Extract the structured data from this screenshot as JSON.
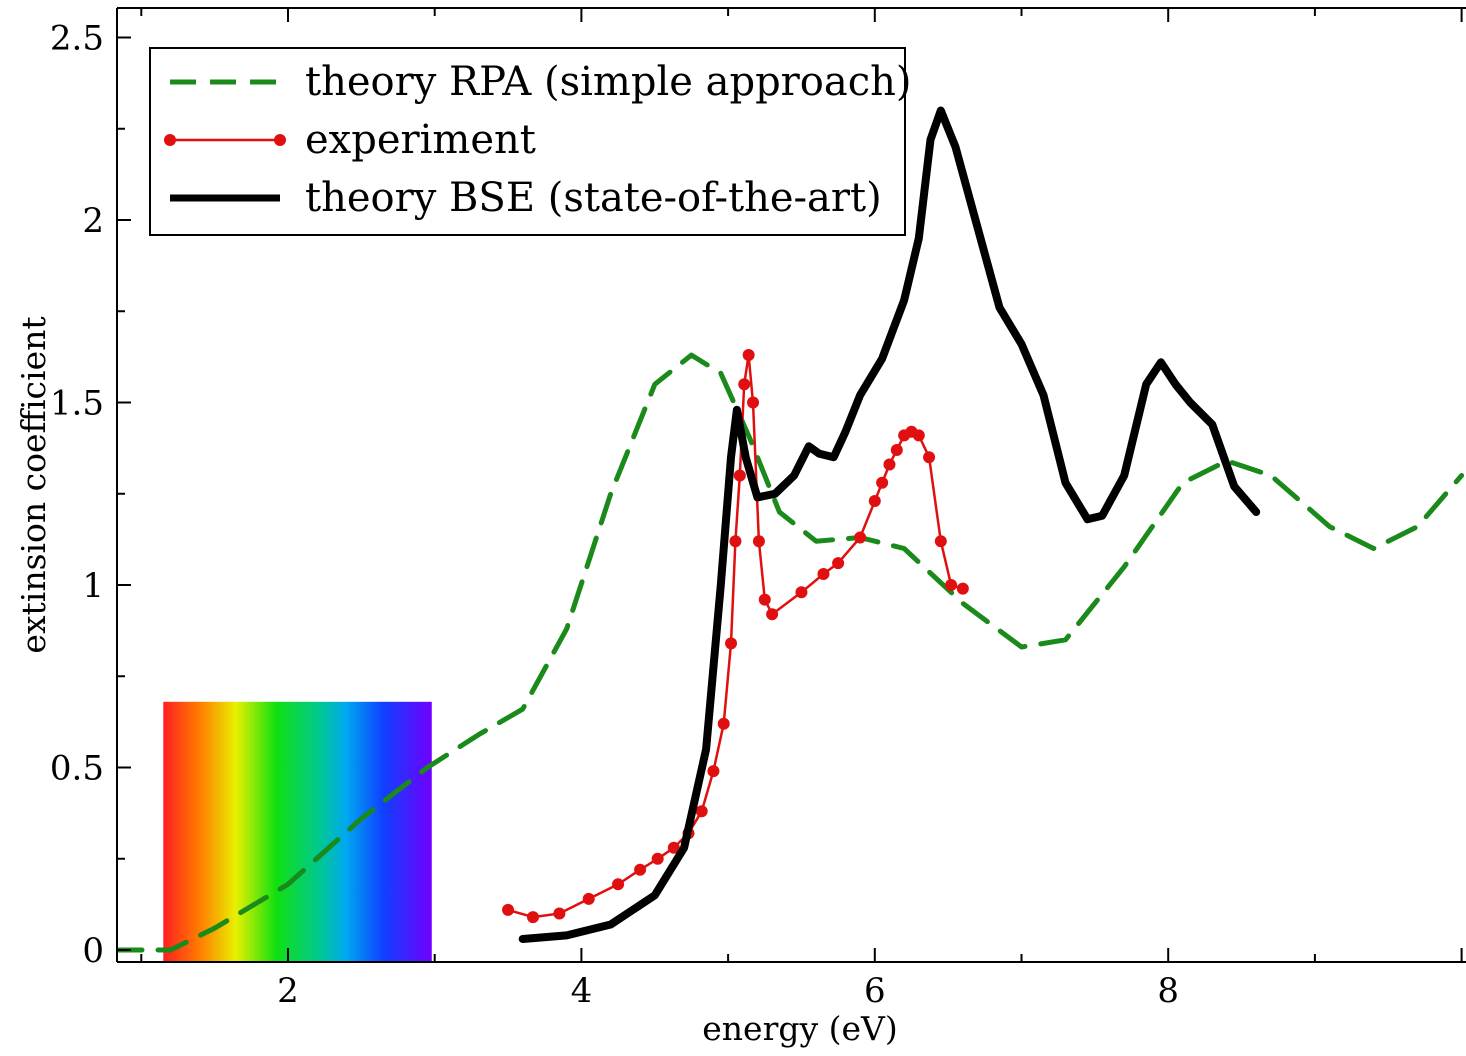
{
  "chart_data": {
    "type": "line",
    "title": "",
    "xlabel": "energy (eV)",
    "ylabel": "extinsion coefficient",
    "xlim": [
      0.8,
      10.0
    ],
    "ylim": [
      -0.03,
      2.6
    ],
    "xticks": [
      2,
      4,
      6,
      8
    ],
    "xtick_labels": [
      "2",
      "4",
      "6",
      "8"
    ],
    "yticks": [
      0,
      0.5,
      1,
      1.5,
      2,
      2.5
    ],
    "ytick_labels": [
      "0",
      "0.5",
      "1",
      "1.5",
      "2",
      "2.5"
    ],
    "grid": false,
    "legend_position": "top-left",
    "visible_spectrum_band": {
      "x_range": [
        1.15,
        2.98
      ],
      "y_top": 0.68
    },
    "series": [
      {
        "name": "theory RPA (simple approach)",
        "style": "dashed",
        "color": "#1a8a1a",
        "x": [
          0.8,
          1.0,
          1.2,
          1.5,
          2.0,
          2.5,
          2.95,
          3.3,
          3.6,
          3.9,
          4.2,
          4.5,
          4.75,
          4.95,
          5.15,
          5.35,
          5.6,
          5.9,
          6.2,
          6.6,
          7.0,
          7.3,
          7.7,
          8.1,
          8.4,
          8.7,
          9.1,
          9.4,
          9.7,
          10.0
        ],
        "y": [
          0.0,
          0.0,
          0.0,
          0.06,
          0.18,
          0.36,
          0.5,
          0.59,
          0.66,
          0.88,
          1.25,
          1.55,
          1.63,
          1.58,
          1.4,
          1.2,
          1.12,
          1.13,
          1.1,
          0.95,
          0.83,
          0.85,
          1.05,
          1.28,
          1.34,
          1.3,
          1.16,
          1.1,
          1.16,
          1.3
        ]
      },
      {
        "name": "experiment",
        "style": "line-markers",
        "color": "#e01010",
        "x": [
          3.5,
          3.67,
          3.85,
          4.05,
          4.25,
          4.4,
          4.52,
          4.63,
          4.73,
          4.82,
          4.9,
          4.97,
          5.02,
          5.05,
          5.08,
          5.11,
          5.14,
          5.17,
          5.21,
          5.25,
          5.3,
          5.5,
          5.65,
          5.75,
          5.9,
          6.0,
          6.05,
          6.1,
          6.15,
          6.2,
          6.25,
          6.3,
          6.37,
          6.45,
          6.52,
          6.6
        ],
        "y": [
          0.11,
          0.09,
          0.1,
          0.14,
          0.18,
          0.22,
          0.25,
          0.28,
          0.32,
          0.38,
          0.49,
          0.62,
          0.84,
          1.12,
          1.3,
          1.55,
          1.63,
          1.5,
          1.12,
          0.96,
          0.92,
          0.98,
          1.03,
          1.06,
          1.13,
          1.23,
          1.28,
          1.33,
          1.37,
          1.41,
          1.42,
          1.41,
          1.35,
          1.12,
          1.0,
          0.99
        ]
      },
      {
        "name": "theory BSE (state-of-the-art)",
        "style": "solid-thick",
        "color": "#000000",
        "x": [
          3.6,
          3.9,
          4.2,
          4.5,
          4.7,
          4.85,
          4.95,
          5.02,
          5.06,
          5.12,
          5.2,
          5.32,
          5.45,
          5.55,
          5.62,
          5.72,
          5.8,
          5.9,
          6.05,
          6.2,
          6.3,
          6.38,
          6.45,
          6.55,
          6.7,
          6.85,
          7.0,
          7.15,
          7.3,
          7.45,
          7.55,
          7.7,
          7.85,
          7.95,
          8.05,
          8.15,
          8.3,
          8.45,
          8.6
        ],
        "y": [
          0.03,
          0.04,
          0.07,
          0.15,
          0.28,
          0.55,
          1.0,
          1.35,
          1.48,
          1.35,
          1.24,
          1.25,
          1.3,
          1.38,
          1.36,
          1.35,
          1.42,
          1.52,
          1.62,
          1.78,
          1.95,
          2.22,
          2.3,
          2.2,
          1.98,
          1.76,
          1.66,
          1.52,
          1.28,
          1.18,
          1.19,
          1.3,
          1.55,
          1.61,
          1.55,
          1.5,
          1.44,
          1.27,
          1.2
        ]
      }
    ]
  }
}
